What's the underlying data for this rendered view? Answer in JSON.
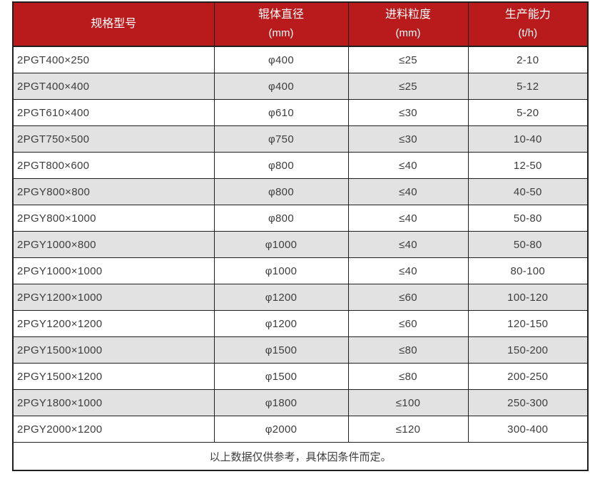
{
  "chart_data": {
    "type": "table",
    "title": "",
    "columns": [
      {
        "label": "规格型号",
        "unit": ""
      },
      {
        "label": "辊体直径",
        "unit": "(mm)"
      },
      {
        "label": "进料粒度",
        "unit": "(mm)"
      },
      {
        "label": "生产能力",
        "unit": "(t/h)"
      }
    ],
    "rows": [
      [
        "2PGT400×250",
        "φ400",
        "≤25",
        "2-10"
      ],
      [
        "2PGT400×400",
        "φ400",
        "≤25",
        "5-12"
      ],
      [
        "2PGT610×400",
        "φ610",
        "≤30",
        "5-20"
      ],
      [
        "2PGT750×500",
        "φ750",
        "≤30",
        "10-40"
      ],
      [
        "2PGT800×600",
        "φ800",
        "≤40",
        "12-50"
      ],
      [
        "2PGY800×800",
        "φ800",
        "≤40",
        "40-50"
      ],
      [
        "2PGY800×1000",
        "φ800",
        "≤40",
        "50-80"
      ],
      [
        "2PGY1000×800",
        "φ1000",
        "≤40",
        "50-80"
      ],
      [
        "2PGY1000×1000",
        "φ1000",
        "≤40",
        "80-100"
      ],
      [
        "2PGY1200×1000",
        "φ1200",
        "≤60",
        "100-120"
      ],
      [
        "2PGY1200×1200",
        "φ1200",
        "≤60",
        "120-150"
      ],
      [
        "2PGY1500×1000",
        "φ1500",
        "≤80",
        "150-200"
      ],
      [
        "2PGY1500×1200",
        "φ1500",
        "≤80",
        "200-250"
      ],
      [
        "2PGY1800×1000",
        "φ1800",
        "≤100",
        "250-300"
      ],
      [
        "2PGY2000×1200",
        "φ2000",
        "≤120",
        "300-400"
      ]
    ],
    "footer_note": "以上数据仅供参考，具体因条件而定。"
  },
  "colors": {
    "header_bg": "#b91b1c",
    "header_text": "#ffffff",
    "row_alt_bg": "#e2e2e2",
    "row_bg": "#ffffff",
    "border": "#1f1f1f",
    "body_text": "#3d3d3d"
  }
}
